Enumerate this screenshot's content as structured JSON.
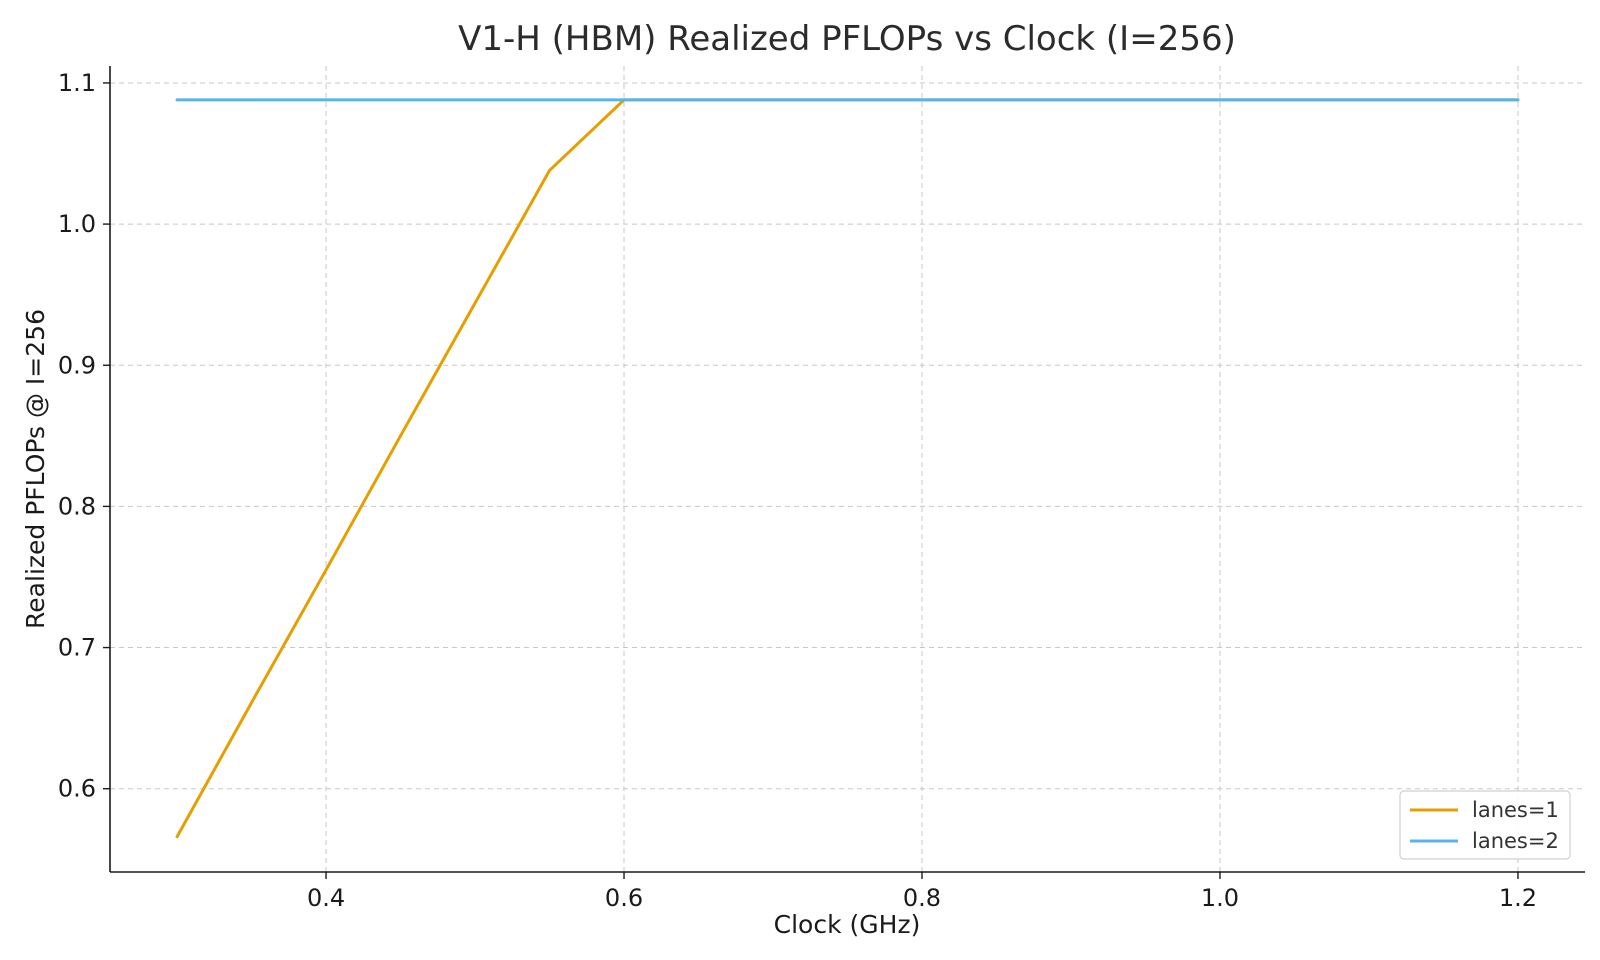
{
  "chart_data": {
    "type": "line",
    "title": "V1-H (HBM) Realized PFLOPs vs Clock (I=256)",
    "xlabel": "Clock (GHz)",
    "ylabel": "Realized PFLOPs @ I=256",
    "xlim": [
      0.255,
      1.245
    ],
    "ylim": [
      0.541,
      1.112
    ],
    "xticks": [
      0.4,
      0.6,
      0.8,
      1.0,
      1.2
    ],
    "xtick_labels": [
      "0.4",
      "0.6",
      "0.8",
      "1.0",
      "1.2"
    ],
    "yticks": [
      0.6,
      0.7,
      0.8,
      0.9,
      1.0,
      1.1
    ],
    "ytick_labels": [
      "0.6",
      "0.7",
      "0.8",
      "0.9",
      "1.0",
      "1.1"
    ],
    "grid": true,
    "legend_position": "lower-right",
    "series": [
      {
        "name": "lanes=1",
        "color": "#E69F00",
        "x": [
          0.3,
          0.35,
          0.4,
          0.45,
          0.5,
          0.55,
          0.6,
          0.65,
          0.7,
          0.75,
          0.8,
          0.85,
          0.9,
          0.95,
          1.0,
          1.05,
          1.1,
          1.15,
          1.2
        ],
        "y": [
          0.566,
          0.661,
          0.755,
          0.85,
          0.944,
          1.038,
          1.088,
          1.088,
          1.088,
          1.088,
          1.088,
          1.088,
          1.088,
          1.088,
          1.088,
          1.088,
          1.088,
          1.088,
          1.088
        ]
      },
      {
        "name": "lanes=2",
        "color": "#56B4E9",
        "x": [
          0.3,
          0.35,
          0.4,
          0.45,
          0.5,
          0.55,
          0.6,
          0.65,
          0.7,
          0.75,
          0.8,
          0.85,
          0.9,
          0.95,
          1.0,
          1.05,
          1.1,
          1.15,
          1.2
        ],
        "y": [
          1.088,
          1.088,
          1.088,
          1.088,
          1.088,
          1.088,
          1.088,
          1.088,
          1.088,
          1.088,
          1.088,
          1.088,
          1.088,
          1.088,
          1.088,
          1.088,
          1.088,
          1.088,
          1.088
        ]
      }
    ]
  }
}
